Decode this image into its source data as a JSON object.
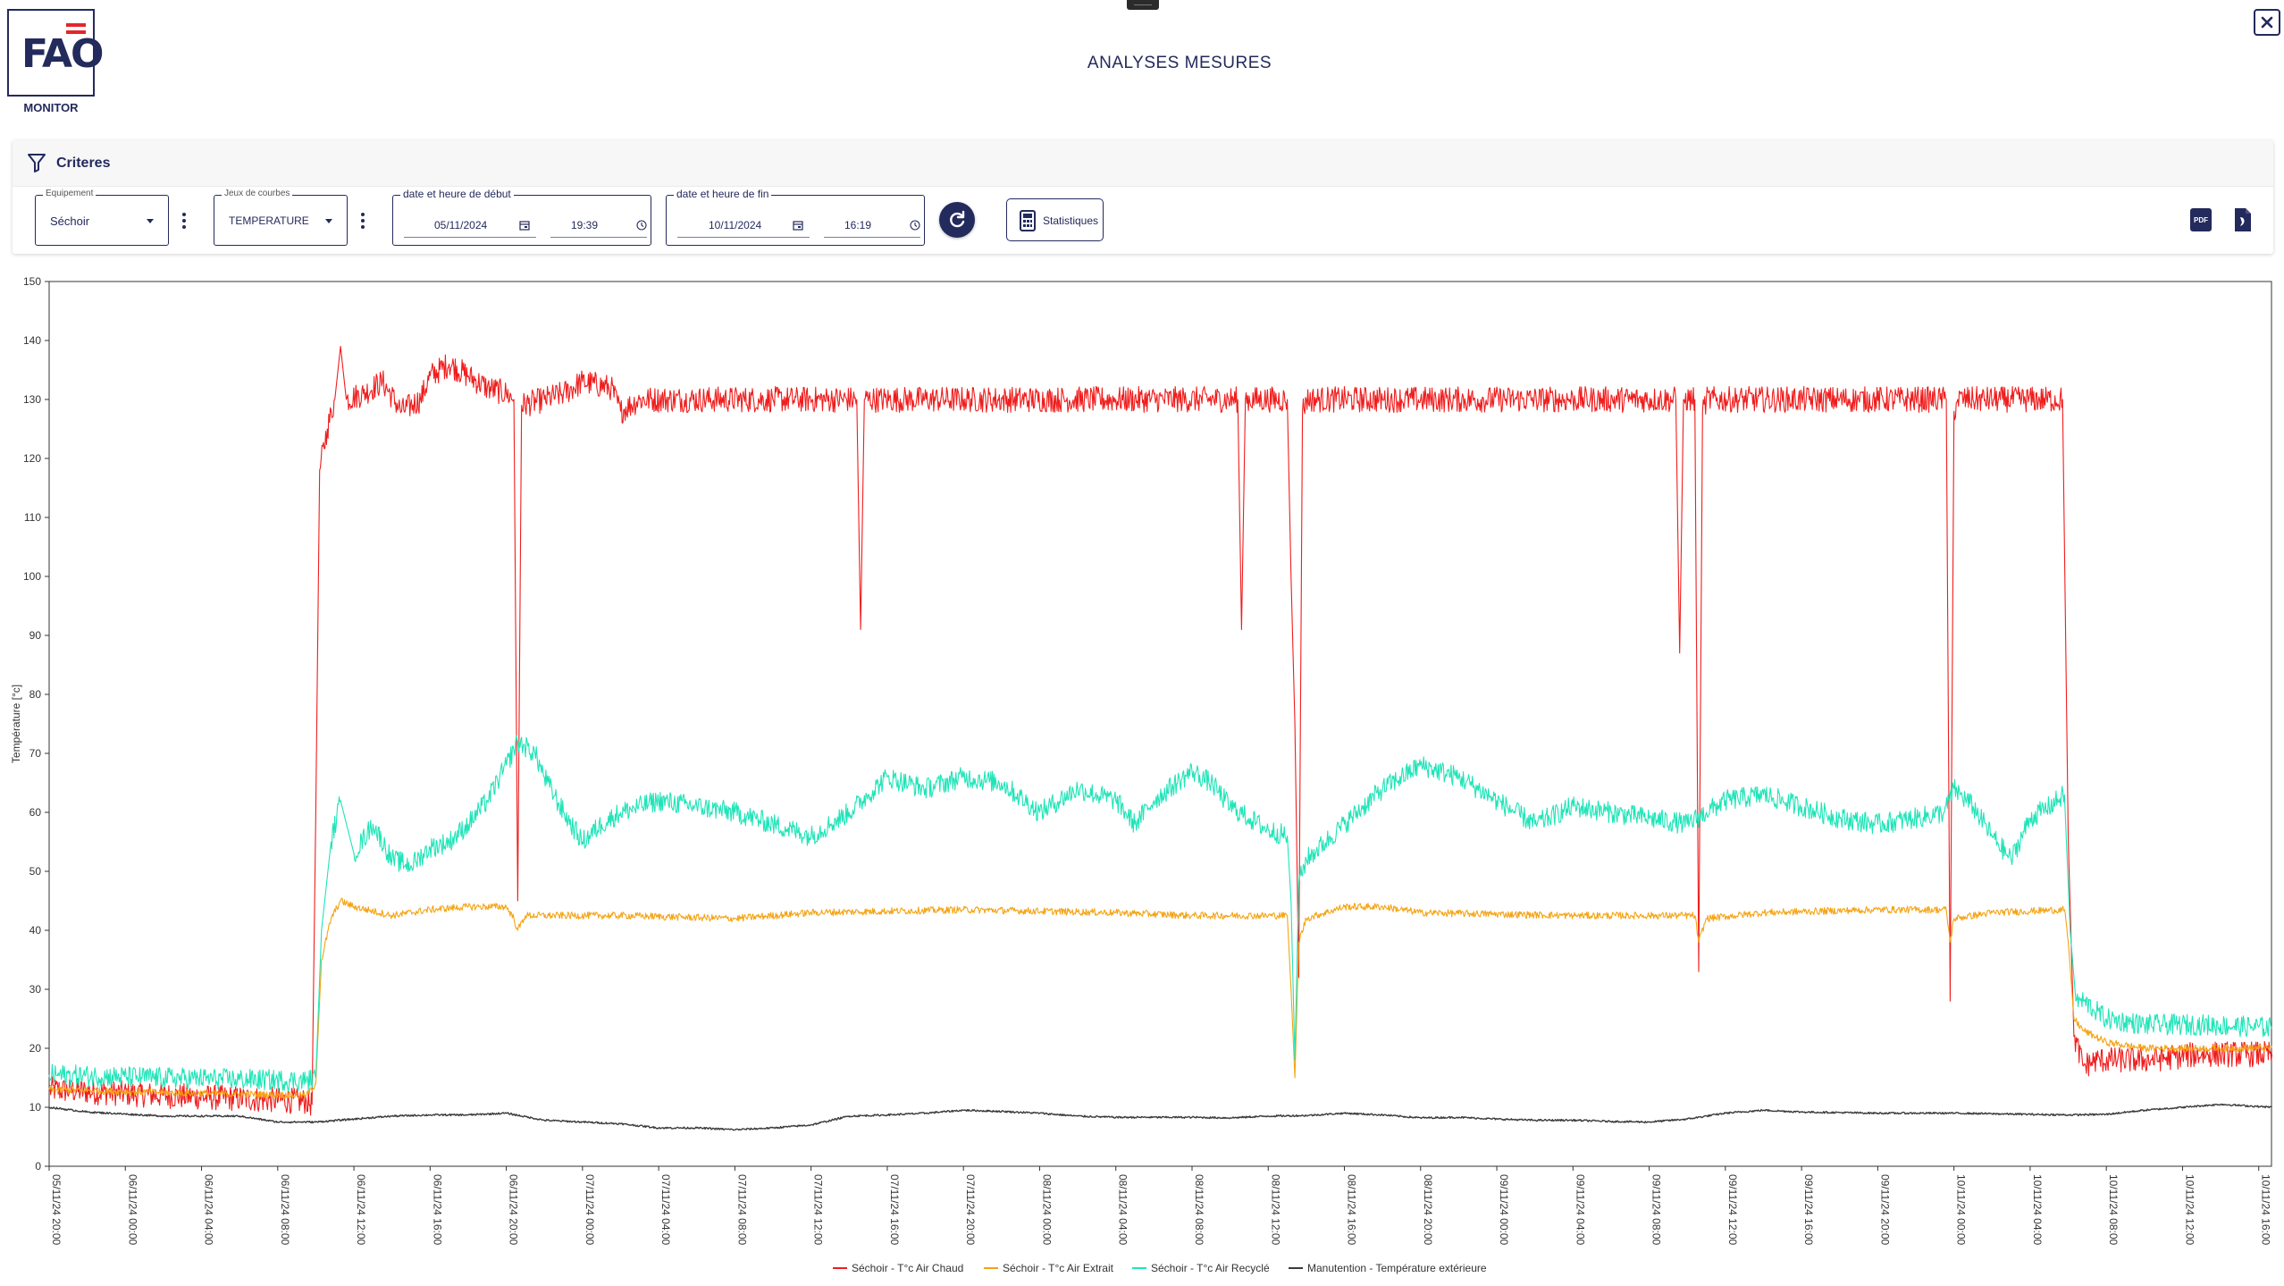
{
  "app": {
    "logo_text": "FAO",
    "logo_caption": "MONITOR",
    "title": "ANALYSES MESURES"
  },
  "criteria": {
    "title": "Criteres",
    "equipment": {
      "label": "Equipement",
      "value": "Séchoir"
    },
    "curve_set": {
      "label": "Jeux de courbes",
      "value": "TEMPERATURE"
    },
    "start": {
      "label": "date et heure de début",
      "date": "05/11/2024",
      "time": "19:39"
    },
    "end": {
      "label": "date et heure de fin",
      "date": "10/11/2024",
      "time": "16:19"
    },
    "stats_label": "Statistiques",
    "pdf_label": "PDF"
  },
  "colors": {
    "primary": "#232a5c",
    "red": "#f01d1d",
    "orange": "#f5a414",
    "teal": "#20e4b8",
    "dark": "#3a3a3a"
  },
  "chart_data": {
    "type": "line",
    "ylabel": "Température [°c]",
    "xlabel": "",
    "ylim": [
      0,
      150
    ],
    "yticks": [
      0,
      10,
      20,
      30,
      40,
      50,
      60,
      70,
      80,
      90,
      100,
      110,
      120,
      130,
      140,
      150
    ],
    "xlim": [
      0,
      116.67
    ],
    "x_unit": "hours since 05/11/24 20:00",
    "x_ticks": [
      {
        "x": 0,
        "label": "05/11/24 20:00"
      },
      {
        "x": 4,
        "label": "06/11/24 00:00"
      },
      {
        "x": 8,
        "label": "06/11/24 04:00"
      },
      {
        "x": 12,
        "label": "06/11/24 08:00"
      },
      {
        "x": 16,
        "label": "06/11/24 12:00"
      },
      {
        "x": 20,
        "label": "06/11/24 16:00"
      },
      {
        "x": 24,
        "label": "06/11/24 20:00"
      },
      {
        "x": 28,
        "label": "07/11/24 00:00"
      },
      {
        "x": 32,
        "label": "07/11/24 04:00"
      },
      {
        "x": 36,
        "label": "07/11/24 08:00"
      },
      {
        "x": 40,
        "label": "07/11/24 12:00"
      },
      {
        "x": 44,
        "label": "07/11/24 16:00"
      },
      {
        "x": 48,
        "label": "07/11/24 20:00"
      },
      {
        "x": 52,
        "label": "08/11/24 00:00"
      },
      {
        "x": 56,
        "label": "08/11/24 04:00"
      },
      {
        "x": 60,
        "label": "08/11/24 08:00"
      },
      {
        "x": 64,
        "label": "08/11/24 12:00"
      },
      {
        "x": 68,
        "label": "08/11/24 16:00"
      },
      {
        "x": 72,
        "label": "08/11/24 20:00"
      },
      {
        "x": 76,
        "label": "09/11/24 00:00"
      },
      {
        "x": 80,
        "label": "09/11/24 04:00"
      },
      {
        "x": 84,
        "label": "09/11/24 08:00"
      },
      {
        "x": 88,
        "label": "09/11/24 12:00"
      },
      {
        "x": 92,
        "label": "09/11/24 16:00"
      },
      {
        "x": 96,
        "label": "09/11/24 20:00"
      },
      {
        "x": 100,
        "label": "10/11/24 00:00"
      },
      {
        "x": 104,
        "label": "10/11/24 04:00"
      },
      {
        "x": 108,
        "label": "10/11/24 08:00"
      },
      {
        "x": 112,
        "label": "10/11/24 12:00"
      },
      {
        "x": 116,
        "label": "10/11/24 16:00"
      }
    ],
    "series": [
      {
        "name": "Séchoir - T°c Air Chaud",
        "color": "#f01d1d",
        "noise": 2.2,
        "points": [
          [
            0,
            13
          ],
          [
            6,
            12
          ],
          [
            13.5,
            11
          ],
          [
            13.8,
            10.5
          ],
          [
            14,
            60
          ],
          [
            14.2,
            118
          ],
          [
            14.6,
            125
          ],
          [
            15,
            130
          ],
          [
            15.3,
            139
          ],
          [
            15.6,
            130
          ],
          [
            16.5,
            131
          ],
          [
            17.5,
            133
          ],
          [
            18.5,
            128
          ],
          [
            19.5,
            130
          ],
          [
            20,
            134
          ],
          [
            21,
            136
          ],
          [
            22,
            134
          ],
          [
            23,
            132
          ],
          [
            24,
            131
          ],
          [
            24.4,
            130
          ],
          [
            24.6,
            45
          ],
          [
            24.8,
            129
          ],
          [
            26,
            130
          ],
          [
            27,
            131
          ],
          [
            28,
            133
          ],
          [
            29.5,
            132
          ],
          [
            30,
            128
          ],
          [
            31,
            130
          ],
          [
            38,
            130
          ],
          [
            42.4,
            130
          ],
          [
            42.6,
            91
          ],
          [
            42.8,
            130
          ],
          [
            48,
            130
          ],
          [
            56,
            130
          ],
          [
            62.4,
            130
          ],
          [
            62.6,
            91
          ],
          [
            62.8,
            130
          ],
          [
            65,
            130
          ],
          [
            65.2,
            100
          ],
          [
            65.4,
            75
          ],
          [
            65.6,
            32
          ],
          [
            65.8,
            128
          ],
          [
            66,
            130
          ],
          [
            70,
            130
          ],
          [
            80,
            130
          ],
          [
            85.4,
            130
          ],
          [
            85.6,
            87
          ],
          [
            85.8,
            130
          ],
          [
            86.4,
            130
          ],
          [
            86.6,
            33
          ],
          [
            86.8,
            128
          ],
          [
            87,
            130
          ],
          [
            95,
            130
          ],
          [
            99.6,
            130
          ],
          [
            99.8,
            28
          ],
          [
            100,
            128
          ],
          [
            100.2,
            130
          ],
          [
            105.7,
            130
          ],
          [
            106,
            55
          ],
          [
            106.3,
            22
          ],
          [
            106.8,
            17
          ],
          [
            107.5,
            18
          ],
          [
            110,
            18
          ],
          [
            113,
            19
          ],
          [
            116.7,
            19
          ]
        ]
      },
      {
        "name": "Séchoir - T°c Air Extrait",
        "color": "#f5a414",
        "noise": 0.6,
        "points": [
          [
            0,
            13
          ],
          [
            6,
            12.5
          ],
          [
            13.5,
            12
          ],
          [
            14,
            14
          ],
          [
            14.3,
            35
          ],
          [
            14.8,
            42
          ],
          [
            15.3,
            45
          ],
          [
            16,
            44
          ],
          [
            18,
            42.5
          ],
          [
            20,
            43.5
          ],
          [
            22,
            44
          ],
          [
            24,
            44
          ],
          [
            24.4,
            42
          ],
          [
            24.6,
            40
          ],
          [
            25,
            42.5
          ],
          [
            30,
            42.5
          ],
          [
            36,
            42
          ],
          [
            40,
            43
          ],
          [
            48,
            43.5
          ],
          [
            56,
            43
          ],
          [
            60,
            42.5
          ],
          [
            64,
            42.5
          ],
          [
            65,
            42.5
          ],
          [
            65.2,
            30
          ],
          [
            65.4,
            15
          ],
          [
            65.6,
            38
          ],
          [
            66,
            42
          ],
          [
            68,
            44
          ],
          [
            70,
            44
          ],
          [
            72,
            43
          ],
          [
            80,
            42.5
          ],
          [
            86.4,
            42.5
          ],
          [
            86.6,
            38
          ],
          [
            87,
            42
          ],
          [
            90,
            43
          ],
          [
            96,
            43.5
          ],
          [
            99.6,
            43.5
          ],
          [
            99.8,
            38
          ],
          [
            100,
            42
          ],
          [
            102,
            43
          ],
          [
            105.8,
            43.5
          ],
          [
            106,
            38
          ],
          [
            106.3,
            25
          ],
          [
            106.8,
            23
          ],
          [
            108,
            21
          ],
          [
            110,
            20
          ],
          [
            113,
            20
          ],
          [
            116.7,
            20
          ]
        ]
      },
      {
        "name": "Séchoir - T°c Air Recyclé",
        "color": "#20e4b8",
        "noise": 1.8,
        "points": [
          [
            0,
            15.5
          ],
          [
            6,
            15
          ],
          [
            13.5,
            14.5
          ],
          [
            14,
            15
          ],
          [
            14.3,
            40
          ],
          [
            14.8,
            55
          ],
          [
            15.3,
            62
          ],
          [
            16,
            53
          ],
          [
            17,
            58
          ],
          [
            18,
            52
          ],
          [
            19,
            51
          ],
          [
            20,
            54
          ],
          [
            21,
            55
          ],
          [
            22,
            58
          ],
          [
            23,
            62
          ],
          [
            24,
            68
          ],
          [
            24.6,
            72
          ],
          [
            25.5,
            70
          ],
          [
            26,
            66
          ],
          [
            27,
            60
          ],
          [
            28,
            55
          ],
          [
            29,
            58
          ],
          [
            30,
            60
          ],
          [
            32,
            62
          ],
          [
            34,
            61
          ],
          [
            36,
            60
          ],
          [
            38,
            58
          ],
          [
            40,
            56
          ],
          [
            41,
            58
          ],
          [
            42,
            60
          ],
          [
            43,
            63
          ],
          [
            44,
            66
          ],
          [
            46,
            64
          ],
          [
            48,
            66
          ],
          [
            50,
            65
          ],
          [
            52,
            60
          ],
          [
            54,
            64
          ],
          [
            56,
            62
          ],
          [
            57,
            58
          ],
          [
            58,
            62
          ],
          [
            60,
            67
          ],
          [
            61,
            65
          ],
          [
            62,
            61
          ],
          [
            63,
            59
          ],
          [
            64,
            57
          ],
          [
            65,
            56
          ],
          [
            65.2,
            45
          ],
          [
            65.4,
            18
          ],
          [
            65.6,
            48
          ],
          [
            66,
            52
          ],
          [
            68,
            58
          ],
          [
            70,
            64
          ],
          [
            72,
            68
          ],
          [
            74,
            66
          ],
          [
            76,
            62
          ],
          [
            78,
            58
          ],
          [
            80,
            61
          ],
          [
            82,
            60
          ],
          [
            84,
            59
          ],
          [
            86,
            58
          ],
          [
            87,
            60
          ],
          [
            88,
            62
          ],
          [
            90,
            63
          ],
          [
            92,
            61
          ],
          [
            94,
            59
          ],
          [
            96,
            58
          ],
          [
            98,
            59
          ],
          [
            99.5,
            60
          ],
          [
            100,
            64
          ],
          [
            101,
            61
          ],
          [
            102,
            56
          ],
          [
            103,
            52
          ],
          [
            104,
            59
          ],
          [
            105,
            61
          ],
          [
            105.8,
            63
          ],
          [
            106.1,
            40
          ],
          [
            106.4,
            28
          ],
          [
            106.8,
            28
          ],
          [
            108,
            25
          ],
          [
            110,
            24
          ],
          [
            113,
            24
          ],
          [
            116.7,
            23.5
          ]
        ]
      },
      {
        "name": "Manutention - Température extérieure",
        "color": "#3a3a3a",
        "noise": 0.15,
        "points": [
          [
            0,
            10
          ],
          [
            2,
            9.2
          ],
          [
            6,
            8.5
          ],
          [
            10,
            8.5
          ],
          [
            12,
            7.5
          ],
          [
            14,
            7.5
          ],
          [
            16,
            8
          ],
          [
            18,
            8.5
          ],
          [
            20,
            8.7
          ],
          [
            22,
            8.7
          ],
          [
            24,
            9
          ],
          [
            26,
            7.8
          ],
          [
            28,
            7.5
          ],
          [
            30,
            7.2
          ],
          [
            32,
            6.5
          ],
          [
            34,
            6.5
          ],
          [
            36,
            6.2
          ],
          [
            38,
            6.5
          ],
          [
            40,
            7
          ],
          [
            42,
            8.5
          ],
          [
            44,
            8.7
          ],
          [
            46,
            9
          ],
          [
            48,
            9.5
          ],
          [
            50,
            9.3
          ],
          [
            52,
            9
          ],
          [
            54,
            8.5
          ],
          [
            56,
            8.3
          ],
          [
            60,
            8.3
          ],
          [
            62,
            8.2
          ],
          [
            64,
            8.5
          ],
          [
            66,
            8.6
          ],
          [
            68,
            9
          ],
          [
            70,
            8.7
          ],
          [
            72,
            8.2
          ],
          [
            74,
            8.3
          ],
          [
            76,
            8
          ],
          [
            78,
            7.8
          ],
          [
            80,
            7.8
          ],
          [
            82,
            7.6
          ],
          [
            84,
            7.5
          ],
          [
            86,
            8
          ],
          [
            88,
            9
          ],
          [
            90,
            9.5
          ],
          [
            92,
            9.2
          ],
          [
            94,
            9.1
          ],
          [
            96,
            9
          ],
          [
            98,
            9
          ],
          [
            100,
            9
          ],
          [
            102,
            8.9
          ],
          [
            104,
            8.8
          ],
          [
            106,
            8.7
          ],
          [
            108,
            8.8
          ],
          [
            110,
            9.5
          ],
          [
            112,
            10
          ],
          [
            114,
            10.5
          ],
          [
            116.7,
            10
          ]
        ]
      }
    ],
    "legend_position": "bottom-center",
    "grid": false
  }
}
